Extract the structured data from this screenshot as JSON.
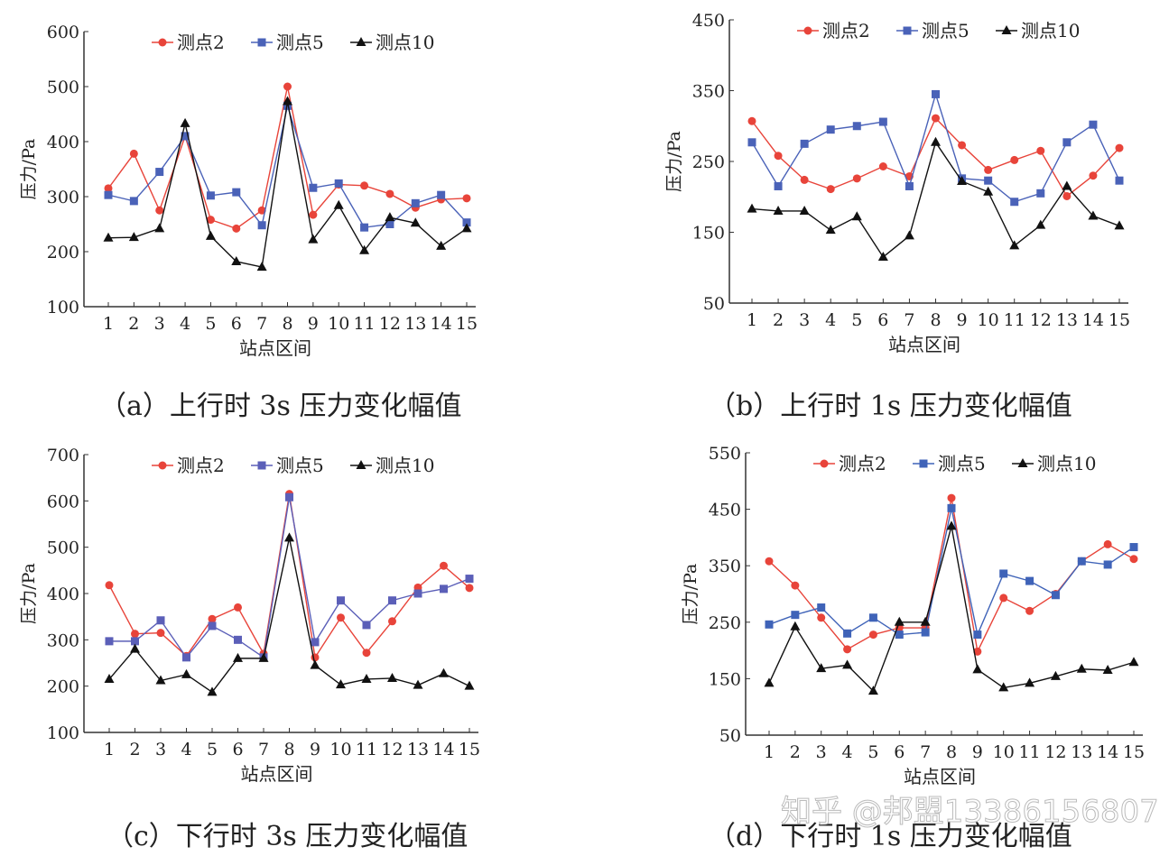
{
  "chart_data": [
    {
      "type": "line",
      "ylabel": "压力/Pa",
      "xlabel": "站点区间",
      "ylim": [
        100,
        600
      ],
      "yticks": [
        100,
        200,
        300,
        400,
        500,
        600
      ],
      "categories": [
        "1",
        "2",
        "3",
        "4",
        "5",
        "6",
        "7",
        "8",
        "9",
        "10",
        "11",
        "12",
        "13",
        "14",
        "15"
      ],
      "legend": "top",
      "series": [
        {
          "name": "测点2",
          "color": "#e8443a",
          "marker": "circle",
          "values": [
            315,
            378,
            275,
            410,
            258,
            242,
            275,
            500,
            267,
            322,
            320,
            305,
            280,
            295,
            297
          ]
        },
        {
          "name": "测点5",
          "color": "#4a62b8",
          "marker": "square",
          "values": [
            303,
            292,
            345,
            410,
            302,
            308,
            248,
            465,
            316,
            324,
            244,
            250,
            288,
            303,
            253
          ]
        },
        {
          "name": "测点10",
          "color": "#111111",
          "marker": "triangle",
          "values": [
            225,
            226,
            242,
            433,
            228,
            182,
            172,
            473,
            222,
            284,
            202,
            262,
            252,
            210,
            242
          ]
        }
      ],
      "caption": "（a）上行时 3s 压力变化幅值"
    },
    {
      "type": "line",
      "ylabel": "压力/Pa",
      "xlabel": "站点区间",
      "ylim": [
        50,
        450
      ],
      "yticks": [
        50,
        150,
        250,
        350,
        450
      ],
      "categories": [
        "1",
        "2",
        "3",
        "4",
        "5",
        "6",
        "7",
        "8",
        "9",
        "10",
        "11",
        "12",
        "13",
        "14",
        "15"
      ],
      "legend": "top",
      "series": [
        {
          "name": "测点2",
          "color": "#e8443a",
          "marker": "circle",
          "values": [
            307,
            258,
            224,
            211,
            226,
            243,
            229,
            311,
            273,
            238,
            252,
            265,
            201,
            230,
            269
          ]
        },
        {
          "name": "测点5",
          "color": "#4a62b8",
          "marker": "square",
          "values": [
            277,
            215,
            275,
            295,
            300,
            306,
            215,
            345,
            226,
            223,
            193,
            205,
            277,
            302,
            223
          ]
        },
        {
          "name": "测点10",
          "color": "#111111",
          "marker": "triangle",
          "values": [
            183,
            180,
            180,
            153,
            172,
            115,
            145,
            277,
            222,
            207,
            131,
            160,
            215,
            173,
            159
          ]
        }
      ],
      "caption": "（b）上行时 1s 压力变化幅值"
    },
    {
      "type": "line",
      "ylabel": "压力/Pa",
      "xlabel": "站点区间",
      "ylim": [
        100,
        700
      ],
      "yticks": [
        100,
        200,
        300,
        400,
        500,
        600,
        700
      ],
      "categories": [
        "1",
        "2",
        "3",
        "4",
        "5",
        "6",
        "7",
        "8",
        "9",
        "10",
        "11",
        "12",
        "13",
        "14",
        "15"
      ],
      "legend": "top",
      "series": [
        {
          "name": "测点2",
          "color": "#e8443a",
          "marker": "circle",
          "values": [
            418,
            313,
            315,
            265,
            345,
            370,
            270,
            615,
            262,
            348,
            272,
            340,
            413,
            460,
            412
          ]
        },
        {
          "name": "测点5",
          "color": "#5b5fb8",
          "marker": "square",
          "values": [
            297,
            297,
            342,
            262,
            330,
            300,
            262,
            608,
            295,
            385,
            332,
            385,
            400,
            410,
            432
          ]
        },
        {
          "name": "测点10",
          "color": "#111111",
          "marker": "triangle",
          "values": [
            215,
            280,
            212,
            225,
            187,
            260,
            260,
            520,
            245,
            203,
            215,
            217,
            202,
            227,
            200
          ]
        }
      ],
      "caption": "（c）下行时 3s 压力变化幅值"
    },
    {
      "type": "line",
      "ylabel": "压力/Pa",
      "xlabel": "站点区间",
      "ylim": [
        50,
        550
      ],
      "yticks": [
        50,
        150,
        250,
        350,
        450,
        550
      ],
      "categories": [
        "1",
        "2",
        "3",
        "4",
        "5",
        "6",
        "7",
        "8",
        "9",
        "10",
        "11",
        "12",
        "13",
        "14",
        "15"
      ],
      "legend": "top",
      "series": [
        {
          "name": "测点2",
          "color": "#e8443a",
          "marker": "circle",
          "values": [
            358,
            315,
            258,
            202,
            228,
            240,
            240,
            470,
            198,
            293,
            270,
            300,
            358,
            388,
            362
          ]
        },
        {
          "name": "测点5",
          "color": "#3f63b8",
          "marker": "square",
          "values": [
            246,
            263,
            276,
            230,
            258,
            228,
            232,
            452,
            228,
            336,
            323,
            298,
            358,
            352,
            383
          ]
        },
        {
          "name": "测点10",
          "color": "#111111",
          "marker": "triangle",
          "values": [
            142,
            242,
            168,
            174,
            128,
            250,
            250,
            420,
            166,
            134,
            142,
            154,
            167,
            165,
            179
          ]
        }
      ],
      "caption": "（d）下行时 1s 压力变化幅值"
    }
  ],
  "watermark": "知乎 @邦盟13386156807"
}
